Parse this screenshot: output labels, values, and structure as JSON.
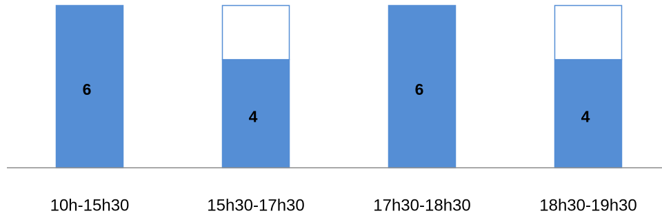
{
  "chart_data": {
    "type": "stacked_bar",
    "categories": [
      "10h-15h30",
      "15h30-17h30",
      "17h30-18h30",
      "18h30-19h30"
    ],
    "series": [
      {
        "color": "#558ed5",
        "values": [
          6,
          4,
          6,
          4
        ]
      },
      {
        "color": "#ffffff",
        "values": [
          0,
          2,
          0,
          2
        ]
      }
    ],
    "ylim": [
      0,
      6
    ],
    "show_value_labels_for_series": [
      0
    ]
  }
}
